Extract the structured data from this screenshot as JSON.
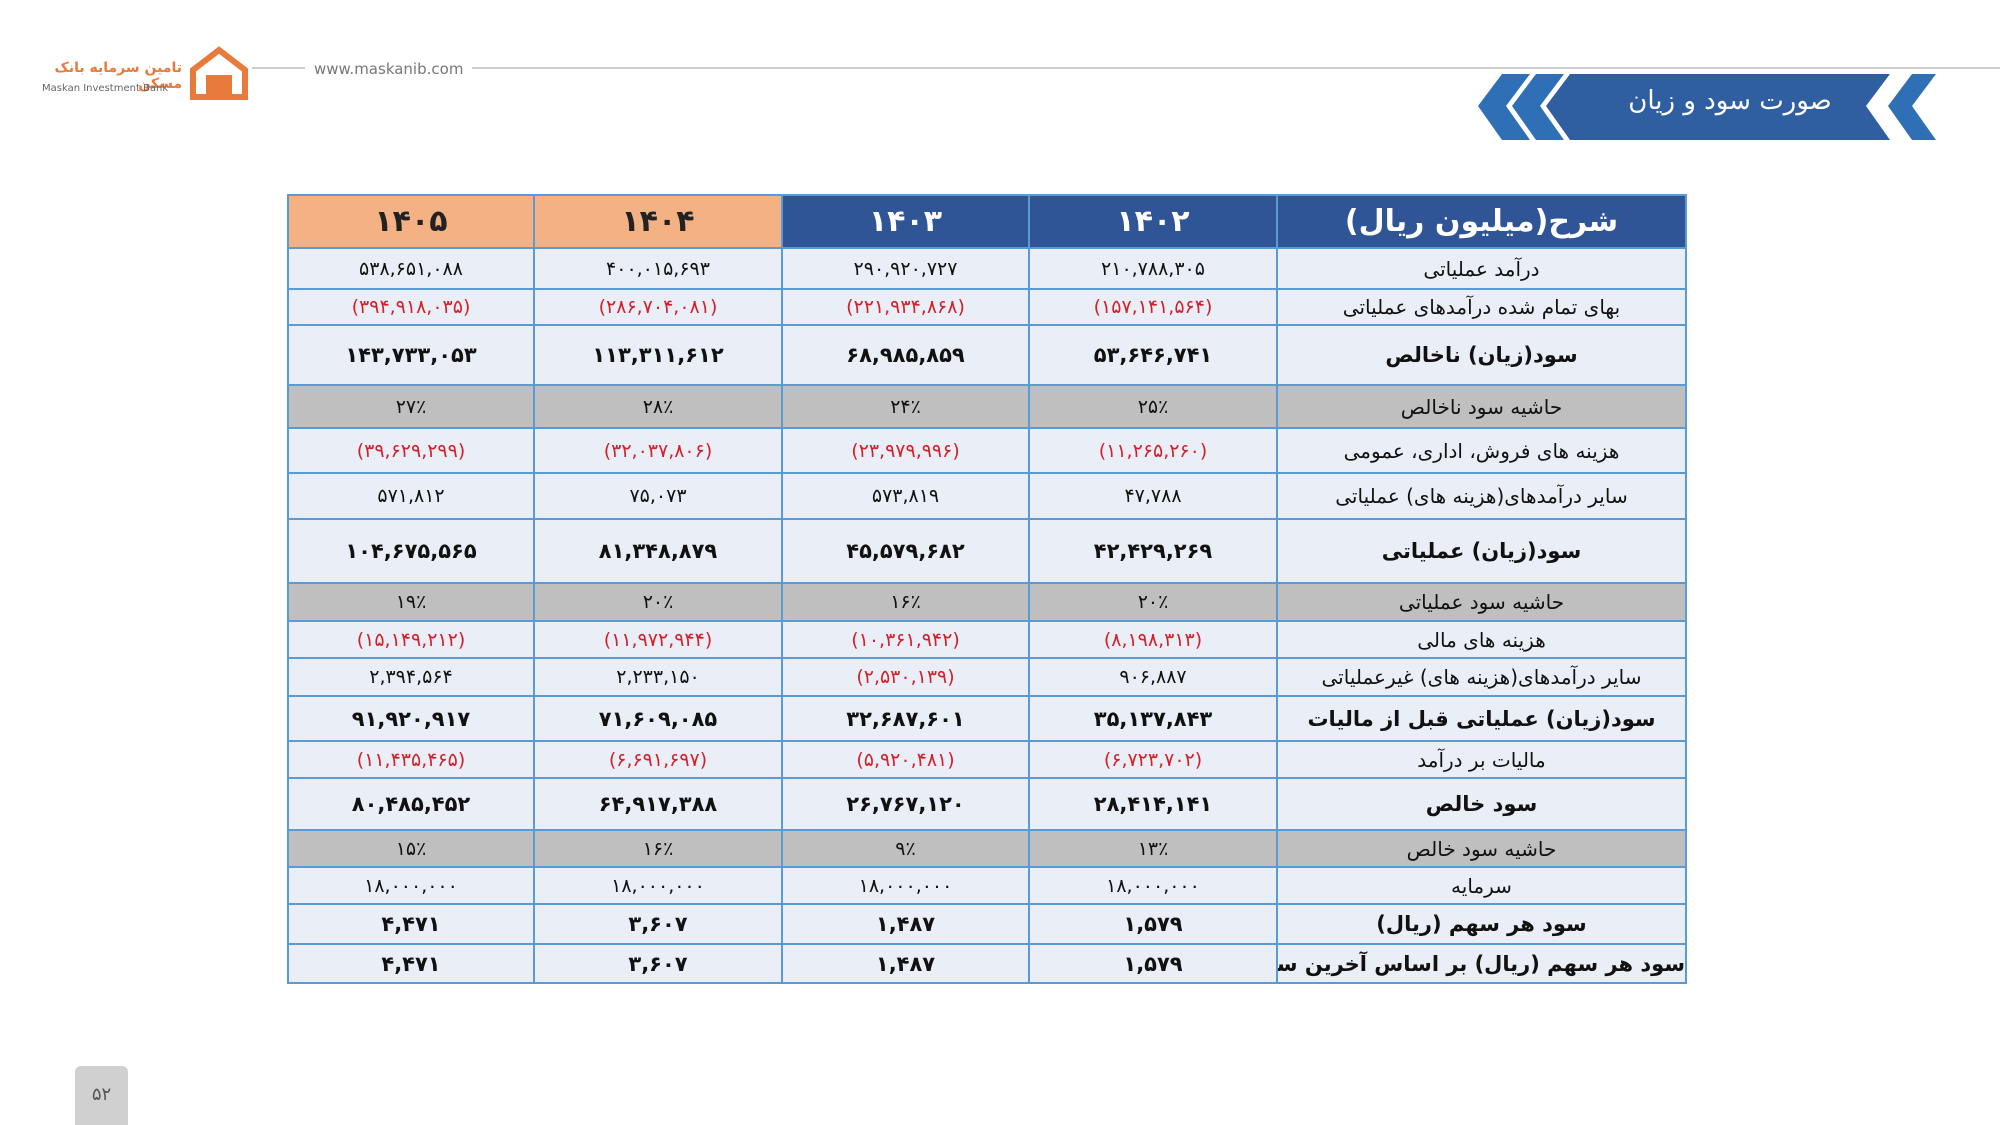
{
  "header": {
    "logo_title": "تامین سرمایه بانک مسکن",
    "logo_subtitle": "Maskan Investment Bank",
    "url": "www.maskanib.com",
    "title": "صورت سود و زیان"
  },
  "table": {
    "columns": [
      "شرح(میلیون ریال)",
      "۱۴۰۲",
      "۱۴۰۳",
      "۱۴۰۴",
      "۱۴۰۵"
    ],
    "rows": [
      [
        "درآمد عملیاتی",
        "۲۱۰,۷۸۸,۳۰۵",
        "۲۹۰,۹۲۰,۷۲۷",
        "۴۰۰,۰۱۵,۶۹۳",
        "۵۳۸,۶۵۱,۰۸۸"
      ],
      [
        "بهای تمام شده درآمدهای عملیاتی",
        "(۱۵۷,۱۴۱,۵۶۴)",
        "(۲۲۱,۹۳۴,۸۶۸)",
        "(۲۸۶,۷۰۴,۰۸۱)",
        "(۳۹۴,۹۱۸,۰۳۵)"
      ],
      [
        "سود(زیان) ناخالص",
        "۵۳,۶۴۶,۷۴۱",
        "۶۸,۹۸۵,۸۵۹",
        "۱۱۳,۳۱۱,۶۱۲",
        "۱۴۳,۷۳۳,۰۵۳"
      ],
      [
        "حاشیه سود ناخالص",
        "۲۵٪",
        "۲۴٪",
        "۲۸٪",
        "۲۷٪"
      ],
      [
        "هزینه های فروش، اداری، عمومی",
        "(۱۱,۲۶۵,۲۶۰)",
        "(۲۳,۹۷۹,۹۹۶)",
        "(۳۲,۰۳۷,۸۰۶)",
        "(۳۹,۶۲۹,۲۹۹)"
      ],
      [
        "سایر درآمدهای(هزینه های) عملیاتی",
        "۴۷,۷۸۸",
        "۵۷۳,۸۱۹",
        "۷۵,۰۷۳",
        "۵۷۱,۸۱۲"
      ],
      [
        "سود(زیان) عملیاتی",
        "۴۲,۴۲۹,۲۶۹",
        "۴۵,۵۷۹,۶۸۲",
        "۸۱,۳۴۸,۸۷۹",
        "۱۰۴,۶۷۵,۵۶۵"
      ],
      [
        "حاشیه سود عملیاتی",
        "۲۰٪",
        "۱۶٪",
        "۲۰٪",
        "۱۹٪"
      ],
      [
        "هزینه های مالی",
        "(۸,۱۹۸,۳۱۳)",
        "(۱۰,۳۶۱,۹۴۲)",
        "(۱۱,۹۷۲,۹۴۴)",
        "(۱۵,۱۴۹,۲۱۲)"
      ],
      [
        "سایر درآمدهای(هزینه های) غیرعملیاتی",
        "۹۰۶,۸۸۷",
        "(۲,۵۳۰,۱۳۹)",
        "۲,۲۳۳,۱۵۰",
        "۲,۳۹۴,۵۶۴"
      ],
      [
        "سود(زیان) عملیاتی قبل از مالیات",
        "۳۵,۱۳۷,۸۴۳",
        "۳۲,۶۸۷,۶۰۱",
        "۷۱,۶۰۹,۰۸۵",
        "۹۱,۹۲۰,۹۱۷"
      ],
      [
        "مالیات بر درآمد",
        "(۶,۷۲۳,۷۰۲)",
        "(۵,۹۲۰,۴۸۱)",
        "(۶,۶۹۱,۶۹۷)",
        "(۱۱,۴۳۵,۴۶۵)"
      ],
      [
        "سود خالص",
        "۲۸,۴۱۴,۱۴۱",
        "۲۶,۷۶۷,۱۲۰",
        "۶۴,۹۱۷,۳۸۸",
        "۸۰,۴۸۵,۴۵۲"
      ],
      [
        "حاشیه سود خالص",
        "۱۳٪",
        "۹٪",
        "۱۶٪",
        "۱۵٪"
      ],
      [
        "سرمایه",
        "۱۸,۰۰۰,۰۰۰",
        "۱۸,۰۰۰,۰۰۰",
        "۱۸,۰۰۰,۰۰۰",
        "۱۸,۰۰۰,۰۰۰"
      ],
      [
        "سود هر سهم (ریال)",
        "۱,۵۷۹",
        "۱,۴۸۷",
        "۳,۶۰۷",
        "۴,۴۷۱"
      ],
      [
        "سود هر سهم (ریال) بر اساس آخرین سرمایه",
        "۱,۵۷۹",
        "۱,۴۸۷",
        "۳,۶۰۷",
        "۴,۴۷۱"
      ]
    ]
  },
  "footer": {
    "page_number": "۵۲"
  }
}
